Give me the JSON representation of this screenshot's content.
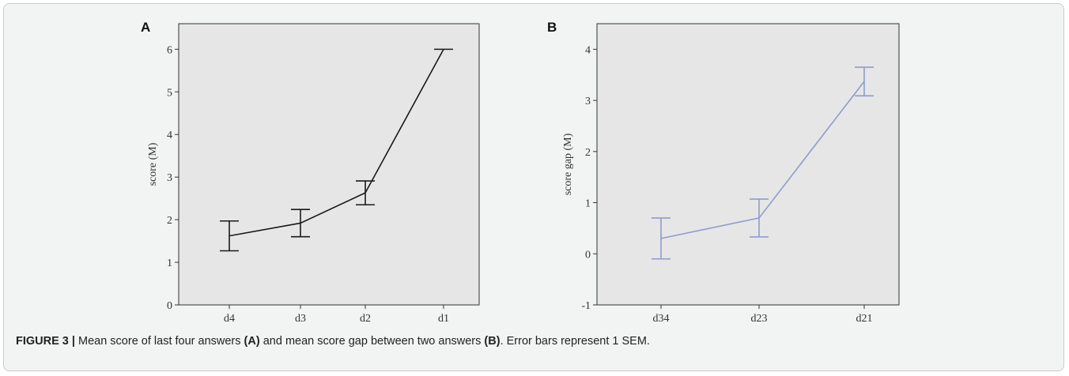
{
  "caption": {
    "label": "FIGURE 3",
    "separator": "|",
    "text_1": "Mean score of last four answers",
    "panel_a_ref": "(A)",
    "text_2": "and mean score gap between two answers",
    "panel_b_ref": "(B)",
    "text_3": ". Error bars represent 1 SEM."
  },
  "chart_data": [
    {
      "panel": "A",
      "type": "line",
      "title": "",
      "xlabel": "",
      "ylabel": "score (M)",
      "categories": [
        "d4",
        "d3",
        "d2",
        "d1"
      ],
      "values": [
        1.62,
        1.92,
        2.63,
        6.0
      ],
      "error": [
        0.35,
        0.32,
        0.28,
        0.0
      ],
      "ylim": [
        0,
        6.6
      ],
      "yticks": [
        0,
        1,
        2,
        3,
        4,
        5,
        6
      ],
      "line_color": "#1a1a1a",
      "background": "#e6e6e6",
      "grid": false
    },
    {
      "panel": "B",
      "type": "line",
      "title": "",
      "xlabel": "",
      "ylabel": "score gap (M)",
      "categories": [
        "d34",
        "d23",
        "d21"
      ],
      "values": [
        0.3,
        0.7,
        3.37
      ],
      "error": [
        0.4,
        0.37,
        0.28
      ],
      "ylim": [
        -1,
        4.5
      ],
      "yticks": [
        -1,
        0,
        1,
        2,
        3,
        4
      ],
      "line_color": "#8f9ccb",
      "background": "#e6e6e6",
      "grid": false
    }
  ]
}
